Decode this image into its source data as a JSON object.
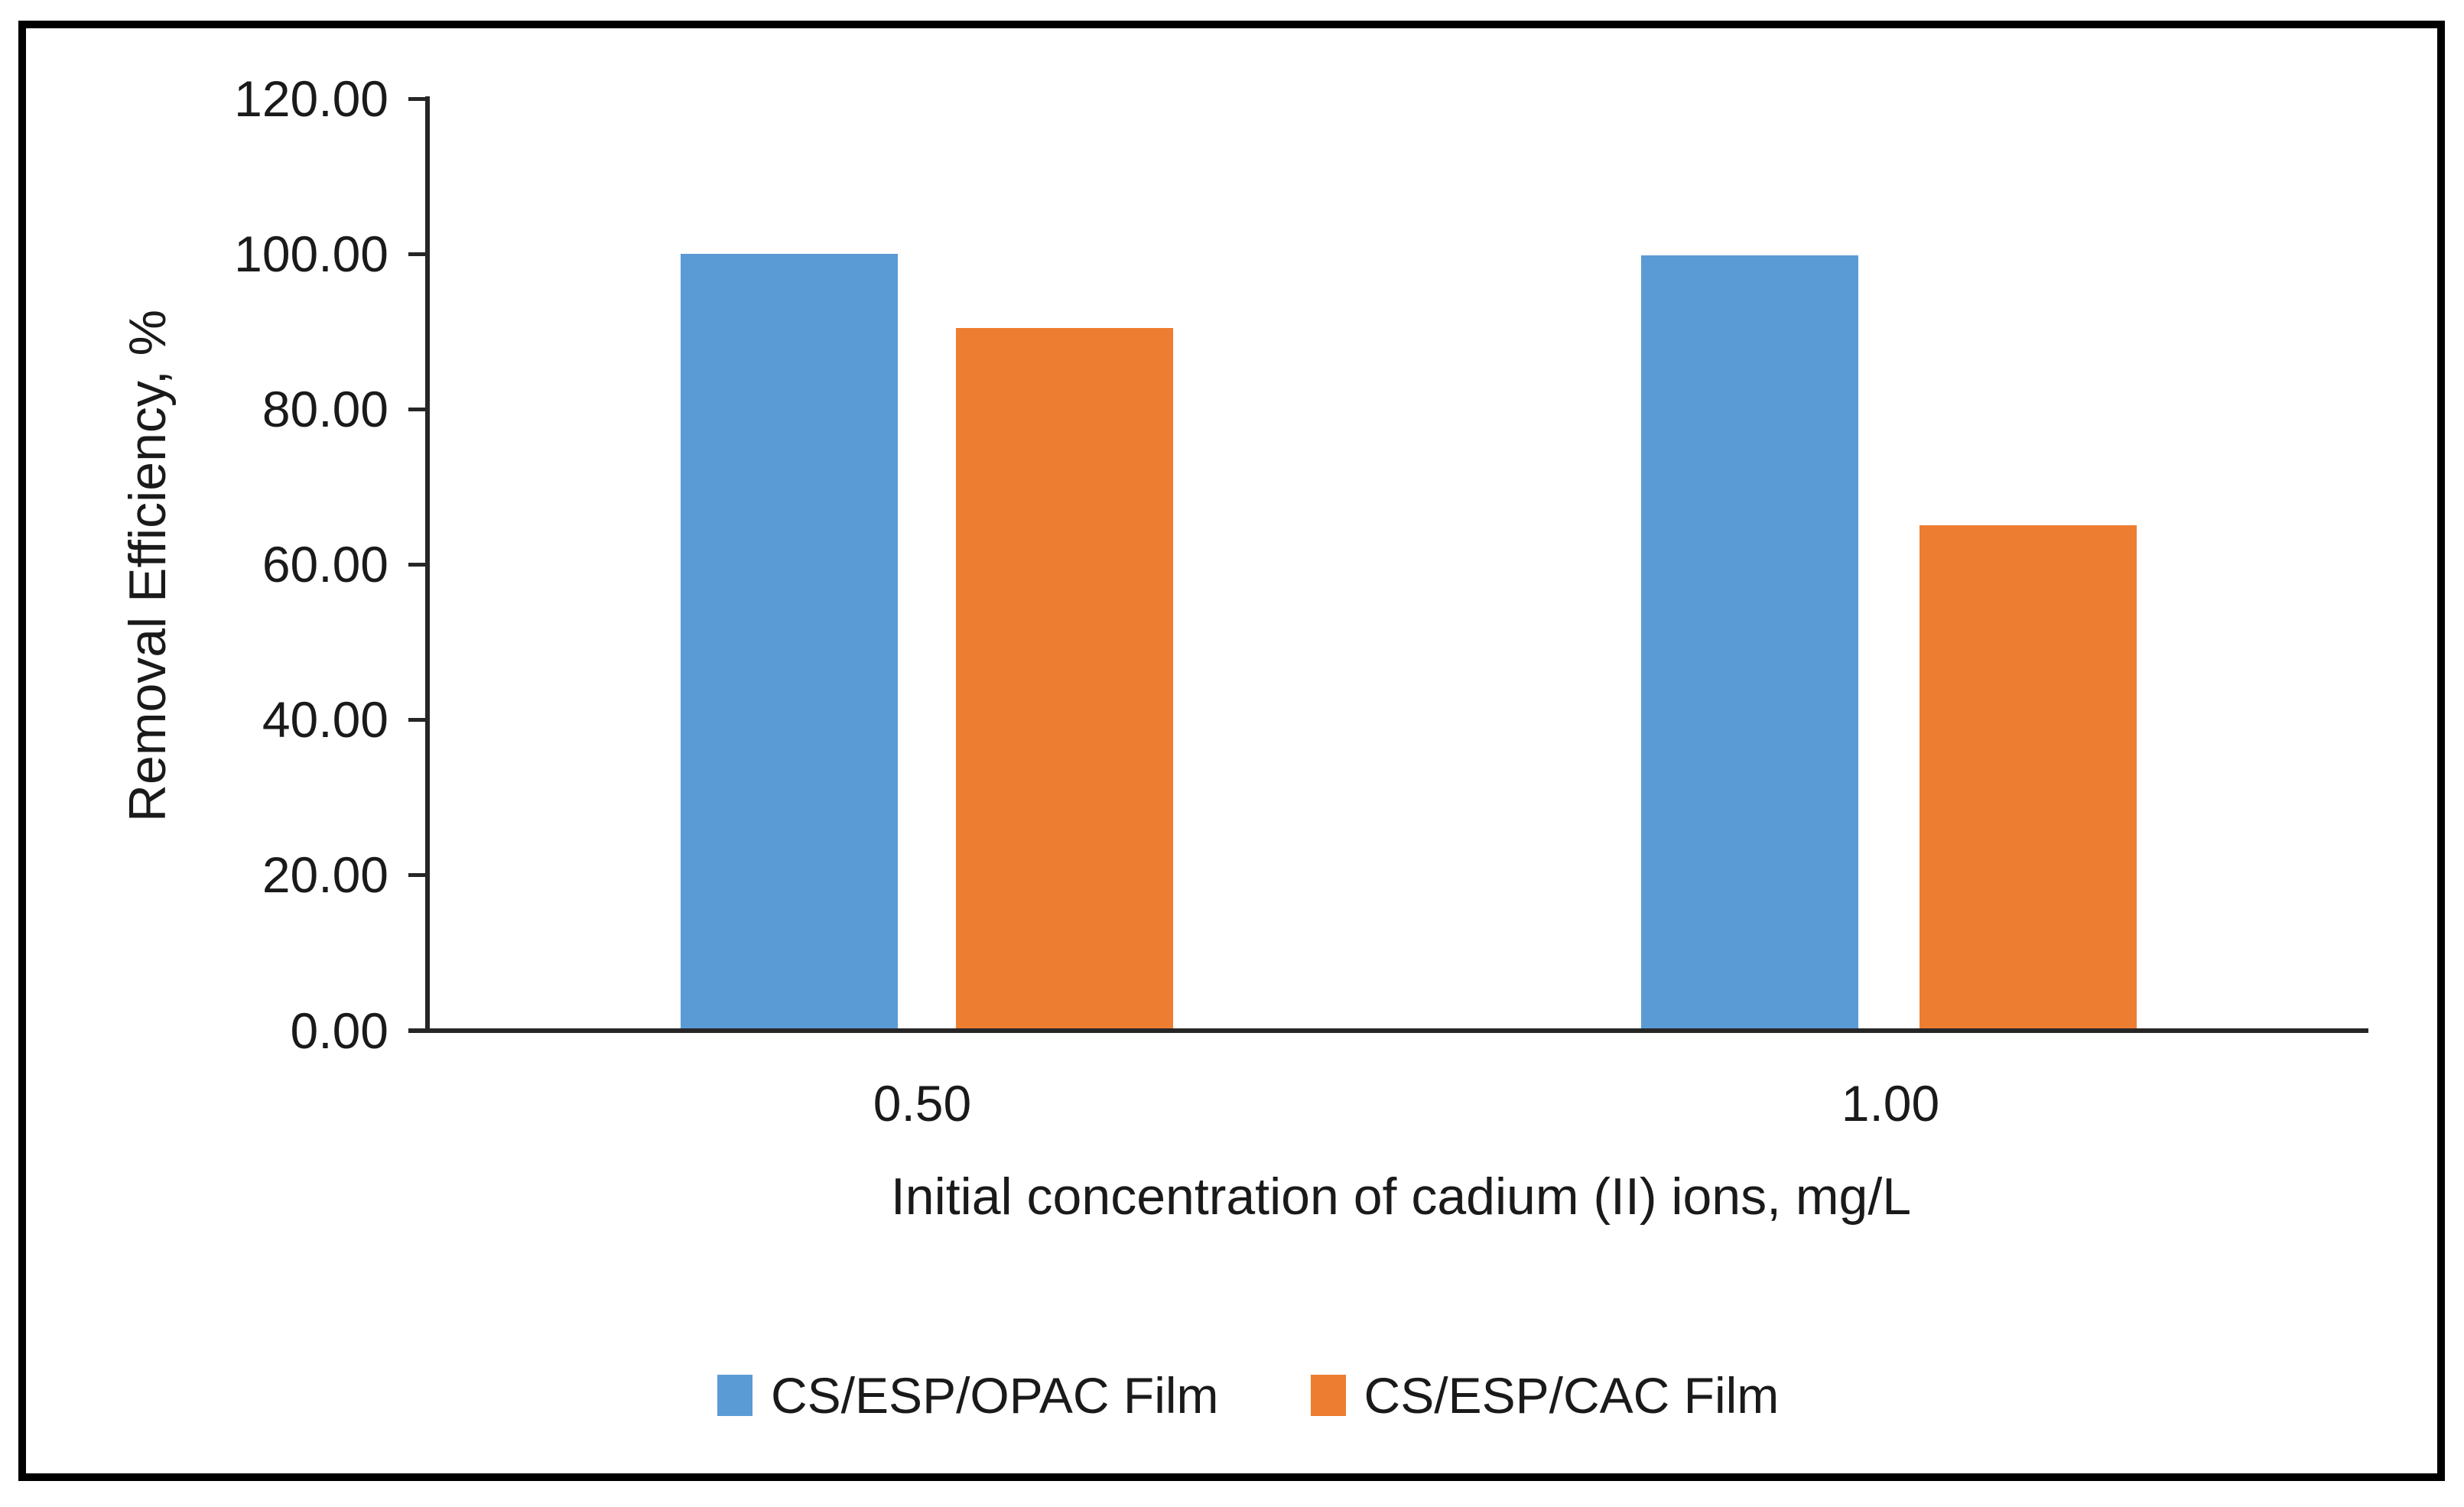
{
  "chart_data": {
    "type": "bar",
    "title": "",
    "categories": [
      "0.50",
      "1.00"
    ],
    "series": [
      {
        "name": "CS/ESP/OPAC Film",
        "color": "#5B9BD5",
        "values": [
          100.0,
          99.8
        ]
      },
      {
        "name": "CS/ESP/CAC Film",
        "color": "#ED7D31",
        "values": [
          90.5,
          65.1
        ]
      }
    ],
    "xlabel": "Initial concentration of cadium (II) ions, mg/L",
    "ylabel": "Removal Efficiency, %",
    "ylim": [
      0,
      120
    ],
    "ytick_step": 20,
    "yticks": [
      "120.00",
      "100.00",
      "80.00",
      "60.00",
      "40.00",
      "20.00",
      "0.00"
    ],
    "grid": false,
    "legend_position": "bottom",
    "axis_color": "#262626",
    "text_color": "#1a1a1a",
    "frame_color": "#000000"
  }
}
